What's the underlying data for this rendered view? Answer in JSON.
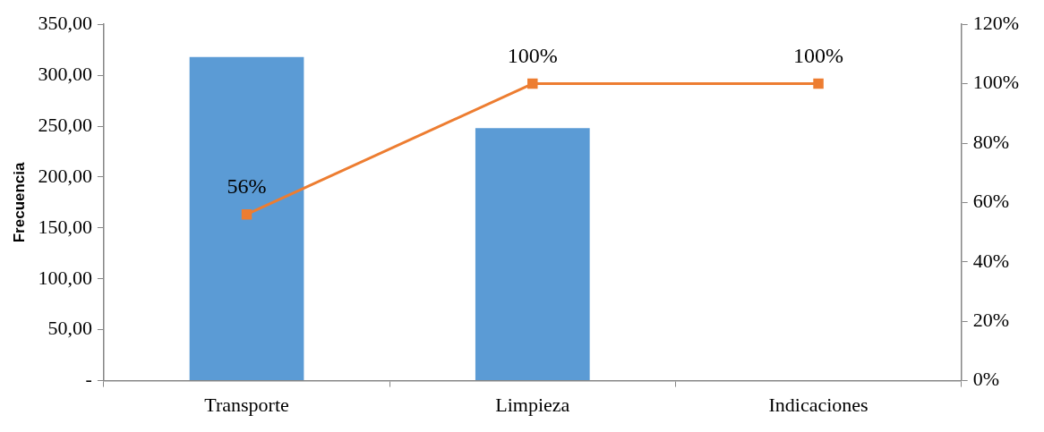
{
  "chart_data": {
    "type": "bar",
    "ylabel": "Frecuencia",
    "categories": [
      "Transporte",
      "Limpieza",
      "Indicaciones"
    ],
    "series": [
      {
        "color": "#5b9bd5",
        "values": [
          318,
          248,
          0
        ]
      },
      {
        "type": "line",
        "axis": "y2",
        "color": "#ed7d31",
        "marker": "square",
        "values": [
          56,
          100,
          100
        ],
        "value_labels": [
          "56%",
          "100%",
          "100%"
        ]
      }
    ],
    "ylim": [
      0,
      350
    ],
    "yticks": [
      {
        "value": 0,
        "label": "-"
      },
      {
        "value": 50,
        "label": "50,00"
      },
      {
        "value": 100,
        "label": "100,00"
      },
      {
        "value": 150,
        "label": "150,00"
      },
      {
        "value": 200,
        "label": "200,00"
      },
      {
        "value": 250,
        "label": "250,00"
      },
      {
        "value": 300,
        "label": "300,00"
      },
      {
        "value": 350,
        "label": "350,00"
      }
    ],
    "y2lim": [
      0,
      120
    ],
    "y2ticks": [
      {
        "value": 0,
        "label": "0%"
      },
      {
        "value": 20,
        "label": "20%"
      },
      {
        "value": 40,
        "label": "40%"
      },
      {
        "value": 60,
        "label": "60%"
      },
      {
        "value": 80,
        "label": "80%"
      },
      {
        "value": 100,
        "label": "100%"
      },
      {
        "value": 120,
        "label": "120%"
      }
    ],
    "grid": false,
    "legend": false
  }
}
